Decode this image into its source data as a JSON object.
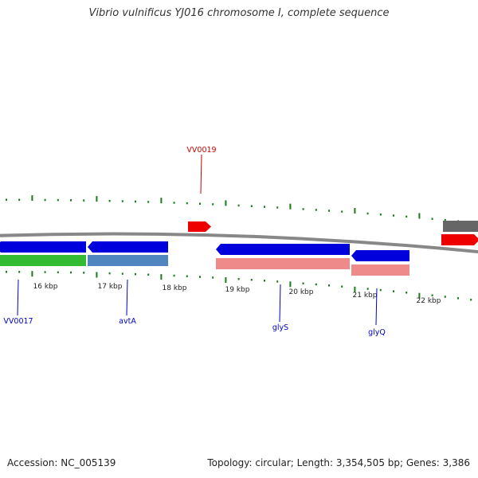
{
  "title": "Vibrio vulnificus YJ016 chromosome I, complete sequence",
  "footer": {
    "accession": "Accession: NC_005139",
    "summary": "Topology: circular; Length: 3,354,505 bp; Genes: 3,386"
  },
  "colors": {
    "tick": "#1a7a1a",
    "backbone": "#888888",
    "forward_label": "#cc0000",
    "reverse_label": "#0000cc"
  },
  "ticks": [
    {
      "label": "16 kbp"
    },
    {
      "label": "17 kbp"
    },
    {
      "label": "18 kbp"
    },
    {
      "label": "19 kbp"
    },
    {
      "label": "20 kbp"
    },
    {
      "label": "21 kbp"
    },
    {
      "label": "22 kbp"
    }
  ],
  "features": [
    {
      "name": "VV0017",
      "strand": "reverse",
      "gene_color": "#0000dd",
      "cds_color": "#33bb33"
    },
    {
      "name": "avtA",
      "strand": "reverse",
      "gene_color": "#0000dd",
      "cds_color": "#4f86c0"
    },
    {
      "name": "VV0019",
      "strand": "forward",
      "gene_color": "#ee0000",
      "cds_color": ""
    },
    {
      "name": "glyS",
      "strand": "reverse",
      "gene_color": "#0000dd",
      "cds_color": "#ee8a8a"
    },
    {
      "name": "glyQ",
      "strand": "reverse",
      "gene_color": "#0000dd",
      "cds_color": "#ee8a8a"
    },
    {
      "name": "",
      "strand": "forward",
      "gene_color": "#ee0000",
      "cds_color": "#666666"
    }
  ]
}
